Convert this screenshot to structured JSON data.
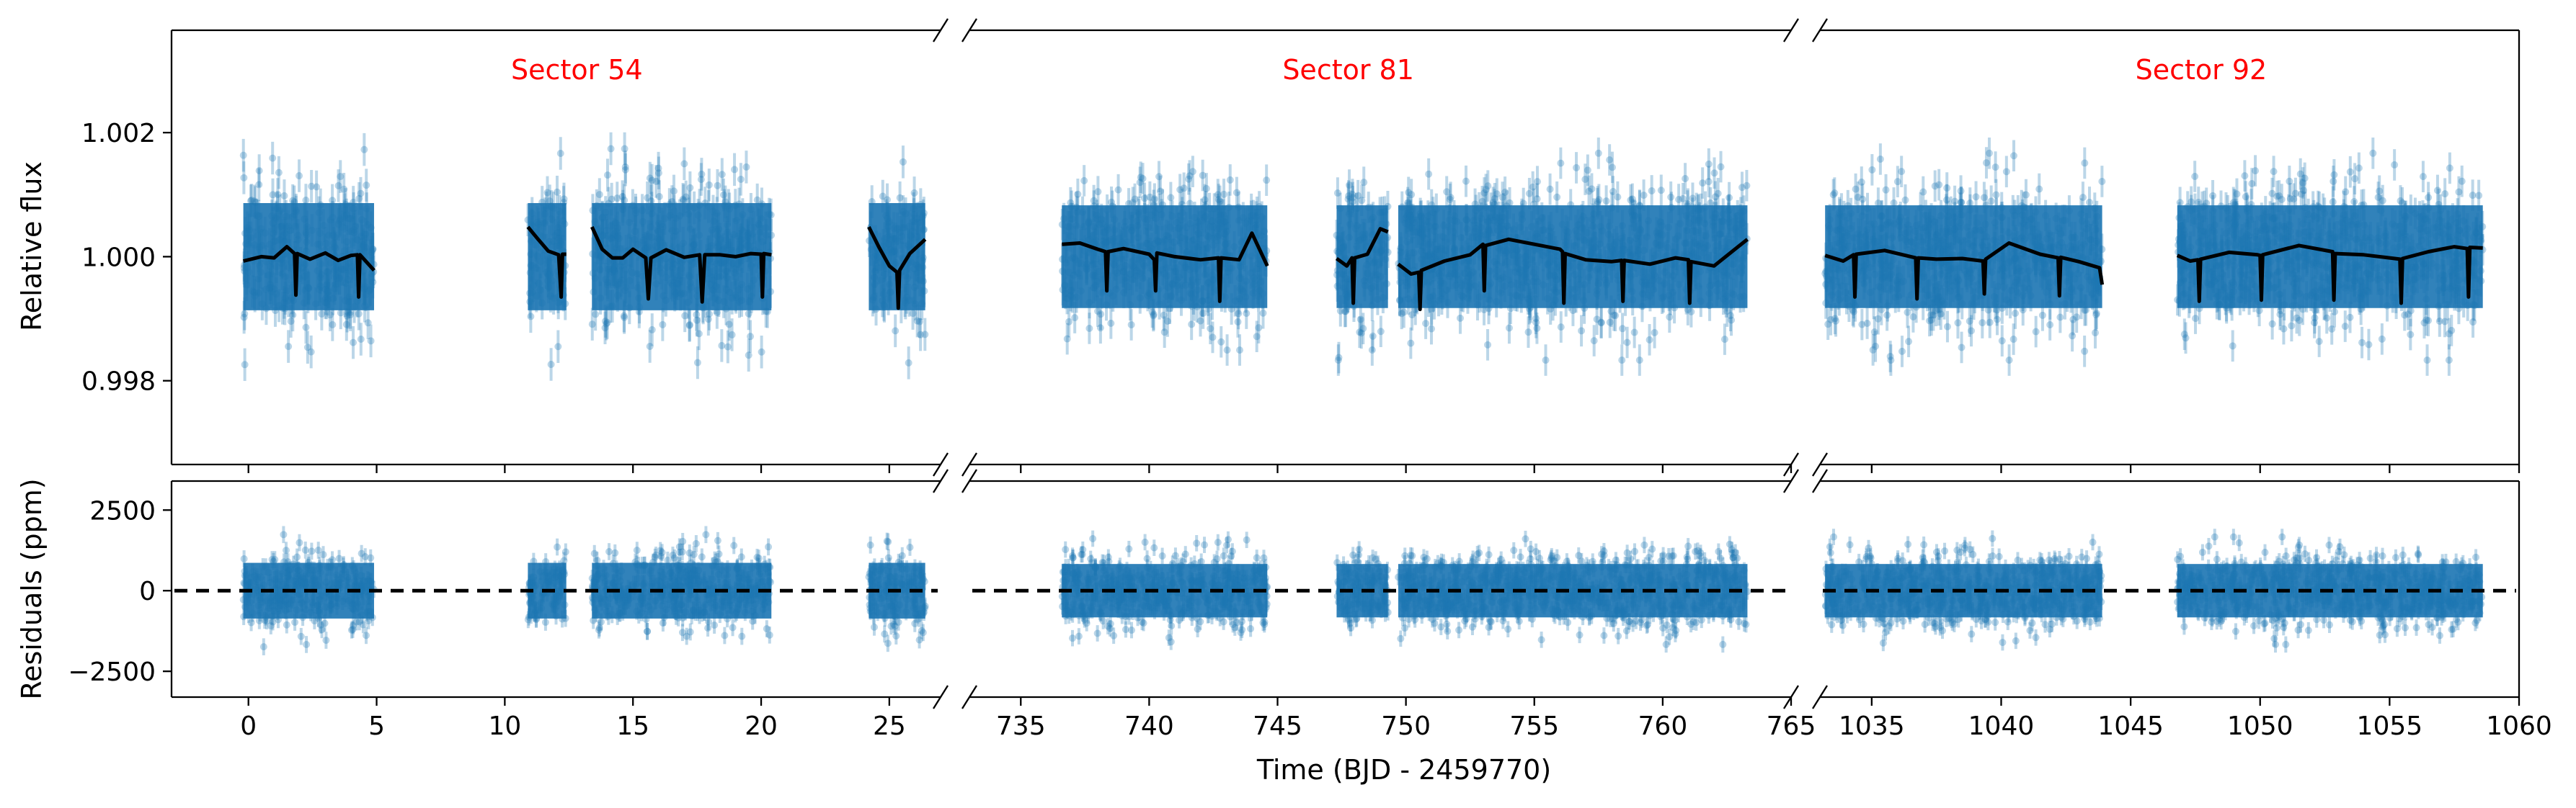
{
  "chart_data": [
    {
      "type": "scatter",
      "panel": "top",
      "ylabel": "Relative flux",
      "ylim": [
        0.99665,
        1.00365
      ],
      "yticks": [
        0.998,
        1.0,
        1.002
      ],
      "ytick_labels": [
        "0.998",
        "1.000",
        "1.002"
      ],
      "point_color": "#1f77b4",
      "model_color": "#000000",
      "label_color": "#ff0000",
      "sectors": [
        {
          "label": "Sector 54",
          "xlim": [
            -3,
            27
          ],
          "xticks": [
            0,
            5,
            10,
            15,
            20,
            25
          ],
          "data_ranges": [
            [
              -0.2,
              4.9
            ],
            [
              10.9,
              12.4
            ],
            [
              13.4,
              20.4
            ],
            [
              24.2,
              26.4
            ]
          ],
          "scatter_center": 1.0,
          "scatter_halfwidth": 0.0012,
          "model": [
            {
              "x": [
                -0.2,
                0.5,
                1.0,
                1.5,
                1.8,
                1.85,
                1.9,
                2.4,
                3.0,
                3.5,
                4.0,
                4.25,
                4.3,
                4.35,
                4.9
              ],
              "y": [
                0.99993,
                1.0,
                0.99998,
                1.00016,
                1.00005,
                0.99938,
                1.00005,
                0.99996,
                1.00006,
                0.99994,
                1.00002,
                1.00003,
                0.99935,
                1.00003,
                0.99978
              ]
            },
            {
              "x": [
                10.9,
                11.3,
                11.7,
                12.1,
                12.2,
                12.25,
                12.4
              ],
              "y": [
                1.00048,
                1.00028,
                1.00009,
                1.00003,
                0.99935,
                1.00004,
                1.00004
              ]
            },
            {
              "x": [
                13.4,
                13.8,
                14.2,
                14.6,
                15.0,
                15.5,
                15.6,
                15.7,
                16.3,
                17.0,
                17.6,
                17.7,
                17.8,
                18.4,
                19.0,
                19.6,
                20.0,
                20.05,
                20.1,
                20.4
              ],
              "y": [
                1.00048,
                1.00012,
                0.99998,
                0.99998,
                1.00012,
                0.99998,
                0.99932,
                0.99998,
                1.00011,
                0.99999,
                1.00003,
                0.99927,
                1.00003,
                1.00003,
                1.0,
                1.00005,
                1.00004,
                0.99935,
                1.00005,
                1.00003
              ]
            },
            {
              "x": [
                24.2,
                24.6,
                25.0,
                25.3,
                25.35,
                25.4,
                25.8,
                26.4
              ],
              "y": [
                1.00048,
                1.00015,
                0.99985,
                0.99975,
                0.99917,
                0.99978,
                1.00005,
                1.00028
              ]
            }
          ]
        },
        {
          "label": "Sector 81",
          "xlim": [
            733,
            765
          ],
          "xticks": [
            735,
            740,
            745,
            750,
            755,
            760,
            765
          ],
          "data_ranges": [
            [
              736.6,
              744.6
            ],
            [
              747.3,
              749.3
            ],
            [
              749.7,
              763.3
            ]
          ],
          "scatter_center": 1.0,
          "scatter_halfwidth": 0.00115,
          "model": [
            {
              "x": [
                736.6,
                737.3,
                738.0,
                738.3,
                738.35,
                738.4,
                739.0,
                740.0,
                740.2,
                740.25,
                740.3,
                741.0,
                742.0,
                742.7,
                742.75,
                742.8,
                743.5,
                744.0,
                744.6
              ],
              "y": [
                1.0002,
                1.00022,
                1.00012,
                1.00008,
                0.99945,
                1.00008,
                1.00013,
                1.00004,
                0.99995,
                0.99945,
                1.00006,
                1.0,
                0.99995,
                0.99998,
                0.99928,
                0.99998,
                0.99995,
                1.00038,
                0.99985
              ]
            },
            {
              "x": [
                747.3,
                747.7,
                747.9,
                747.95,
                748.0,
                748.5,
                749.0,
                749.3
              ],
              "y": [
                0.99997,
                0.99985,
                0.99998,
                0.99925,
                0.99998,
                1.00004,
                1.00045,
                1.0004
              ]
            },
            {
              "x": [
                749.7,
                750.2,
                750.5,
                750.55,
                750.6,
                751.5,
                752.5,
                753.0,
                753.05,
                753.1,
                754.0,
                755.0,
                756.0,
                756.1,
                756.15,
                756.2,
                757.0,
                758.0,
                758.4,
                758.45,
                758.5,
                759.5,
                760.5,
                761.0,
                761.05,
                761.1,
                762.0,
                763.3
              ],
              "y": [
                0.99988,
                0.99972,
                0.99975,
                0.99915,
                0.99978,
                0.99993,
                1.00003,
                1.0002,
                0.99945,
                1.00018,
                1.00028,
                1.0002,
                1.00012,
                1.00008,
                0.99925,
                1.00005,
                0.99995,
                0.99992,
                0.99994,
                0.99928,
                0.99994,
                0.99988,
                0.99998,
                0.99995,
                0.99925,
                0.99992,
                0.99985,
                1.00028
              ]
            }
          ]
        },
        {
          "label": "Sector 92",
          "xlim": [
            1033,
            1060
          ],
          "xticks": [
            1035,
            1040,
            1045,
            1050,
            1055,
            1060
          ],
          "data_ranges": [
            [
              1033.2,
              1043.9
            ],
            [
              1046.8,
              1058.6
            ]
          ],
          "scatter_center": 1.0,
          "scatter_halfwidth": 0.00115,
          "model": [
            {
              "x": [
                1033.2,
                1033.9,
                1034.3,
                1034.35,
                1034.4,
                1035.5,
                1036.7,
                1036.75,
                1036.8,
                1037.5,
                1038.5,
                1039.3,
                1039.35,
                1039.4,
                1040.3,
                1041.5,
                1042.2,
                1042.25,
                1042.3,
                1043.0,
                1043.8,
                1043.9
              ],
              "y": [
                1.00002,
                0.99993,
                1.00003,
                0.99935,
                1.00004,
                1.0001,
                0.99998,
                0.99932,
                0.99998,
                0.99996,
                0.99997,
                0.99993,
                0.9994,
                0.99996,
                1.00022,
                1.00004,
                0.99998,
                0.99937,
                0.99999,
                0.99992,
                0.99982,
                0.99955
              ]
            },
            {
              "x": [
                1046.8,
                1047.3,
                1047.6,
                1047.65,
                1047.7,
                1048.8,
                1049.9,
                1050.0,
                1050.05,
                1050.1,
                1051.5,
                1052.8,
                1052.85,
                1052.9,
                1054.0,
                1055.0,
                1055.4,
                1055.45,
                1055.5,
                1056.5,
                1057.5,
                1058.0,
                1058.05,
                1058.1,
                1058.6
              ],
              "y": [
                1.00002,
                0.99993,
                0.99995,
                0.99928,
                0.99996,
                1.00007,
                1.00003,
                1.00002,
                0.9993,
                1.00003,
                1.00018,
                1.00008,
                0.9993,
                1.00005,
                1.00003,
                0.99998,
                0.99996,
                0.99925,
                0.99997,
                1.00008,
                1.00016,
                1.00013,
                0.99935,
                1.00015,
                1.00014
              ]
            }
          ]
        }
      ]
    },
    {
      "type": "scatter",
      "panel": "bottom",
      "ylabel": "Residuals (ppm)",
      "xlabel": "Time (BJD - 2459770)",
      "ylim": [
        -3300,
        3400
      ],
      "yticks": [
        -2500,
        0,
        2500
      ],
      "ytick_labels": [
        "−2500",
        "0",
        "2500"
      ],
      "point_color": "#1f77b4",
      "zero_line": 0,
      "sectors": [
        {
          "xlim": [
            -3,
            27
          ],
          "xticks": [
            0,
            5,
            10,
            15,
            20,
            25
          ],
          "xtick_labels": [
            "0",
            "5",
            "10",
            "15",
            "20",
            "25"
          ],
          "data_ranges": [
            [
              -0.2,
              4.9
            ],
            [
              10.9,
              12.4
            ],
            [
              13.4,
              20.4
            ],
            [
              24.2,
              26.4
            ]
          ],
          "scatter_halfwidth": 1200
        },
        {
          "xlim": [
            733,
            765
          ],
          "xticks": [
            735,
            740,
            745,
            750,
            755,
            760,
            765
          ],
          "xtick_labels": [
            "735",
            "740",
            "745",
            "750",
            "755",
            "760",
            "765"
          ],
          "data_ranges": [
            [
              736.6,
              744.6
            ],
            [
              747.3,
              749.3
            ],
            [
              749.7,
              763.3
            ]
          ],
          "scatter_halfwidth": 1150
        },
        {
          "xlim": [
            1033,
            1060
          ],
          "xticks": [
            1035,
            1040,
            1045,
            1050,
            1055,
            1060
          ],
          "xtick_labels": [
            "1035",
            "1040",
            "1045",
            "1050",
            "1055",
            "1060"
          ],
          "data_ranges": [
            [
              1033.2,
              1043.9
            ],
            [
              1046.8,
              1058.6
            ]
          ],
          "scatter_halfwidth": 1150
        }
      ]
    }
  ]
}
